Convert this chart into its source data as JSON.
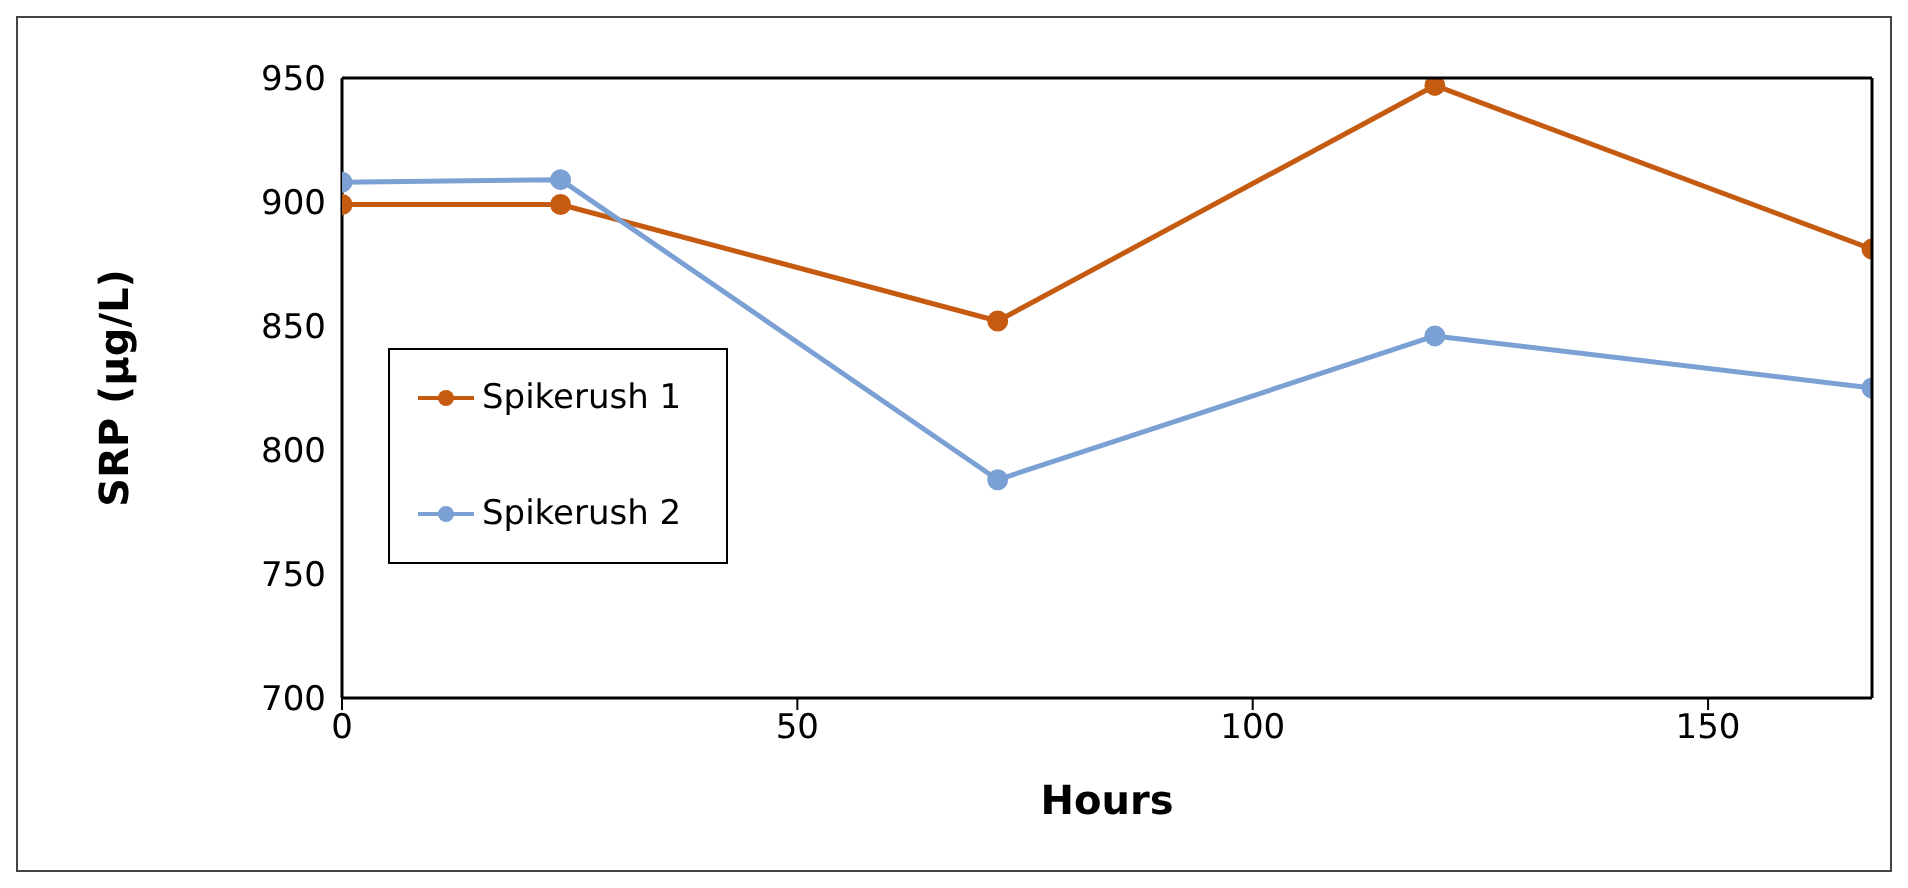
{
  "chart_data": {
    "type": "line",
    "xlabel": "Hours",
    "ylabel": "SRP (µg/L)",
    "x": [
      0,
      24,
      72,
      120,
      168
    ],
    "series": [
      {
        "name": "Spikerush 1",
        "color": "#c55a11",
        "values": [
          899,
          899,
          852,
          947,
          881
        ]
      },
      {
        "name": "Spikerush 2",
        "color": "#7ba0d4",
        "values": [
          908,
          909,
          788,
          846,
          825
        ]
      }
    ],
    "xlim": [
      0,
      168
    ],
    "xticks": [
      0,
      50,
      100,
      150
    ],
    "ylim": [
      700,
      950
    ],
    "yticks": [
      700,
      750,
      800,
      850,
      900,
      950
    ],
    "grid": false,
    "legend": "left",
    "marker": "circle",
    "line_style": "solid"
  }
}
